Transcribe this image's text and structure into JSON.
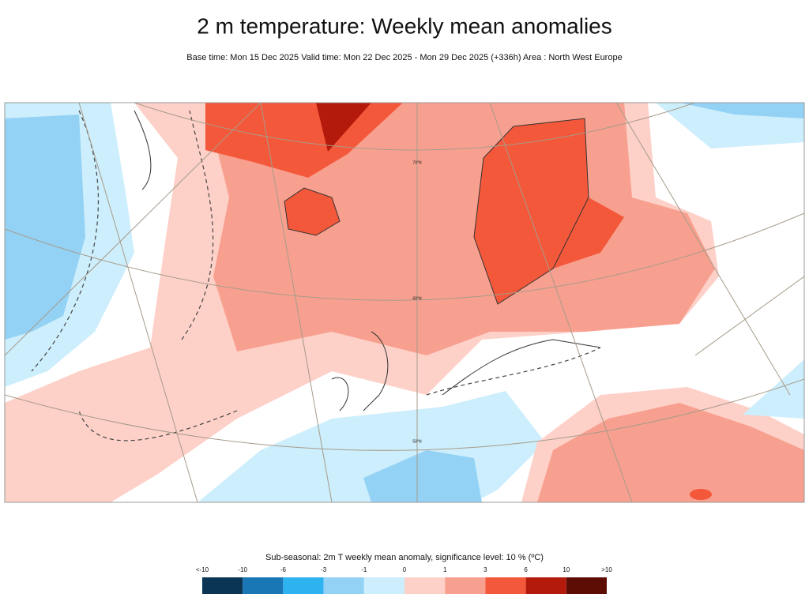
{
  "header": {
    "title": "2 m temperature: Weekly mean anomalies",
    "subtitle": "Base time: Mon 15 Dec 2025 Valid time: Mon 22 Dec 2025 - Mon 29 Dec 2025 (+336h) Area : North West Europe"
  },
  "map": {
    "grid_labels": [
      "70°N",
      "60°N",
      "50°N"
    ]
  },
  "legend": {
    "title": "Sub-seasonal: 2m T weekly mean anomaly, significance level: 10 % (ºC)",
    "labels": [
      "<-10",
      "-10",
      "-6",
      "-3",
      "-1",
      "0",
      "1",
      "3",
      "6",
      "10",
      ">10"
    ],
    "colors": [
      "#0a3555",
      "#1a77b5",
      "#2fb3f0",
      "#94d2f5",
      "#cdeefc",
      "#fdd0c8",
      "#f8a08f",
      "#f4583a",
      "#b31a0b",
      "#5e0d05"
    ]
  }
}
